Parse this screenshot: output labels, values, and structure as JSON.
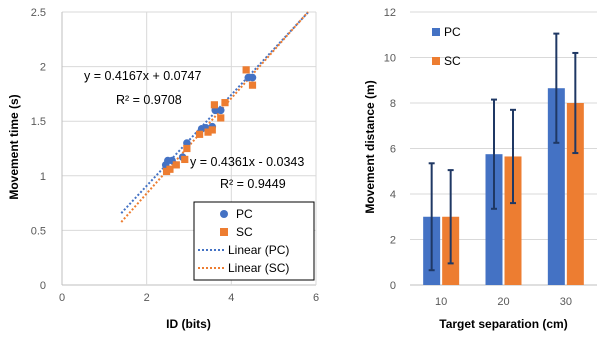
{
  "chart_data": [
    {
      "type": "scatter",
      "xlabel": "ID (bits)",
      "ylabel": "Movement time (s)",
      "xlim": [
        0,
        6
      ],
      "ylim": [
        0,
        2.5
      ],
      "x_ticks": [
        "0",
        "2",
        "4",
        "6"
      ],
      "y_ticks": [
        "0",
        "0.5",
        "1",
        "1.5",
        "2",
        "2.5"
      ],
      "grid": true,
      "legend_position": "bottom-right",
      "series": [
        {
          "name": "PC",
          "color": "#4472C4",
          "marker": "circle",
          "points": [
            [
              2.45,
              1.1
            ],
            [
              2.5,
              1.14
            ],
            [
              2.6,
              1.14
            ],
            [
              2.85,
              1.17
            ],
            [
              2.95,
              1.3
            ],
            [
              3.3,
              1.43
            ],
            [
              3.4,
              1.44
            ],
            [
              3.55,
              1.45
            ],
            [
              3.62,
              1.6
            ],
            [
              3.75,
              1.6
            ],
            [
              4.4,
              1.9
            ],
            [
              4.5,
              1.9
            ]
          ]
        },
        {
          "name": "SC",
          "color": "#ED7D31",
          "marker": "square",
          "points": [
            [
              2.47,
              1.04
            ],
            [
              2.55,
              1.06
            ],
            [
              2.7,
              1.1
            ],
            [
              2.9,
              1.15
            ],
            [
              2.95,
              1.25
            ],
            [
              3.25,
              1.38
            ],
            [
              3.45,
              1.4
            ],
            [
              3.55,
              1.42
            ],
            [
              3.6,
              1.65
            ],
            [
              3.75,
              1.53
            ],
            [
              3.85,
              1.67
            ],
            [
              4.35,
              1.97
            ],
            [
              4.5,
              1.83
            ]
          ]
        },
        {
          "name": "Linear (PC)",
          "color": "#4472C4",
          "style": "dotted",
          "slope": 0.4167,
          "intercept": 0.0747,
          "x_range": [
            1.4,
            6.2
          ]
        },
        {
          "name": "Linear (SC)",
          "color": "#ED7D31",
          "style": "dotted",
          "slope": 0.4361,
          "intercept": -0.0343,
          "x_range": [
            1.4,
            6.2
          ]
        }
      ],
      "annotations": [
        {
          "text": "y = 0.4167x + 0.0747"
        },
        {
          "text": "R² = 0.9708"
        },
        {
          "text": "y = 0.4361x - 0.0343"
        },
        {
          "text": "R² = 0.9449"
        }
      ]
    },
    {
      "type": "bar",
      "xlabel": "Target separation (cm)",
      "ylabel": "Movement distance (m)",
      "categories": [
        "10",
        "20",
        "30"
      ],
      "ylim": [
        0,
        12
      ],
      "y_ticks": [
        "0",
        "2",
        "4",
        "6",
        "8",
        "10",
        "12"
      ],
      "grid": true,
      "legend_position": "top-left",
      "series": [
        {
          "name": "PC",
          "color": "#4472C4",
          "values": [
            3.0,
            5.75,
            8.65
          ],
          "error": [
            2.35,
            2.4,
            2.4
          ]
        },
        {
          "name": "SC",
          "color": "#ED7D31",
          "values": [
            3.0,
            5.65,
            8.0
          ],
          "error": [
            2.05,
            2.05,
            2.2
          ]
        }
      ],
      "error_bar_color": "#1F3864"
    }
  ]
}
